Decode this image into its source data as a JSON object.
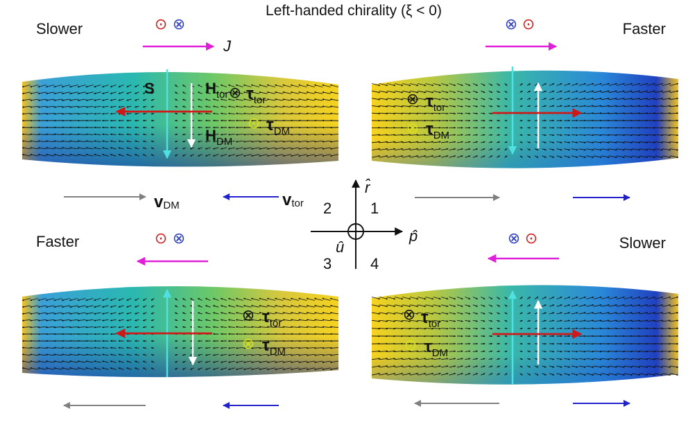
{
  "title": "Left-handed chirality (ξ < 0)",
  "colors": {
    "current": "#e020d8",
    "velocity_dm": "#808080",
    "velocity_tor": "#2222cc",
    "h_field": "#d01818",
    "s_down": "#50e0e0",
    "h_white": "#ffffff",
    "dot_red": "#d02020",
    "cross_blue": "#3040c0",
    "dm_symbol": "#d8e020"
  },
  "panels": [
    {
      "id": "top-left",
      "speed_label": "Slower",
      "spin_symbols": [
        "⊙",
        "⊗"
      ],
      "current_label": "J",
      "labels": {
        "s": "S",
        "h_tor": "H",
        "h_tor_sub": "tor",
        "h_dm": "H",
        "h_dm_sub": "DM",
        "tau_tor": "τ",
        "tau_tor_sub": "tor",
        "tau_dm": "τ",
        "tau_dm_sub": "DM",
        "tau_tor_sym": "⊗",
        "tau_dm_sym": "⊙"
      },
      "velocity_labels": {
        "dm": "v",
        "dm_sub": "DM",
        "tor": "v",
        "tor_sub": "tor"
      }
    },
    {
      "id": "top-right",
      "speed_label": "Faster",
      "spin_symbols": [
        "⊗",
        "⊙"
      ],
      "labels": {
        "tau_tor": "τ",
        "tau_tor_sub": "tor",
        "tau_dm": "τ",
        "tau_dm_sub": "DM",
        "tau_tor_sym": "⊗",
        "tau_dm_sym": "⊗"
      }
    },
    {
      "id": "bottom-left",
      "speed_label": "Faster",
      "spin_symbols": [
        "⊙",
        "⊗"
      ],
      "labels": {
        "tau_tor": "τ",
        "tau_tor_sub": "tor",
        "tau_dm": "τ",
        "tau_dm_sub": "DM",
        "tau_tor_sym": "⊗",
        "tau_dm_sym": "⊗"
      }
    },
    {
      "id": "bottom-right",
      "speed_label": "Slower",
      "spin_symbols": [
        "⊗",
        "⊙"
      ],
      "labels": {
        "tau_tor": "τ",
        "tau_tor_sub": "tor",
        "tau_dm": "τ",
        "tau_dm_sub": "DM",
        "tau_tor_sym": "⊗",
        "tau_dm_sym": "⊙"
      }
    }
  ],
  "axes": {
    "r": "r̂",
    "p": "p̂",
    "u": "û",
    "quadrants": [
      "1",
      "2",
      "3",
      "4"
    ]
  }
}
